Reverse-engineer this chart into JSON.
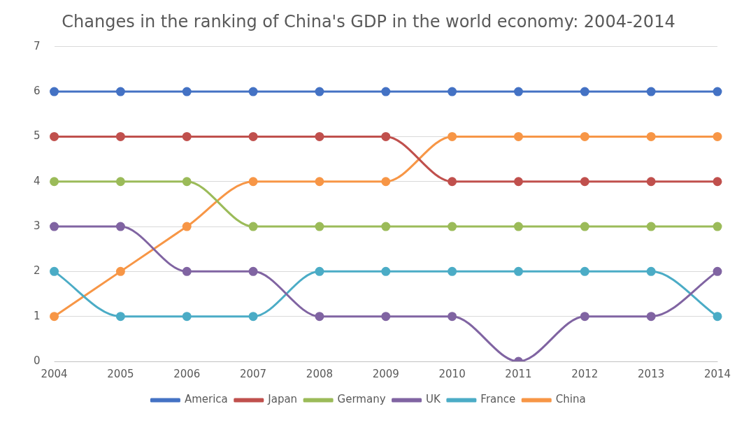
{
  "chart_data": {
    "type": "line",
    "title": "Changes in the ranking of China's GDP in the world economy: 2004-2014",
    "categories": [
      "2004",
      "2005",
      "2006",
      "2007",
      "2008",
      "2009",
      "2010",
      "2011",
      "2012",
      "2013",
      "2014"
    ],
    "series": [
      {
        "name": "America",
        "color": "#4472c4",
        "values": [
          6,
          6,
          6,
          6,
          6,
          6,
          6,
          6,
          6,
          6,
          6
        ]
      },
      {
        "name": "Japan",
        "color": "#c0504d",
        "values": [
          5,
          5,
          5,
          5,
          5,
          5,
          4,
          4,
          4,
          4,
          4
        ]
      },
      {
        "name": "Germany",
        "color": "#9bbb59",
        "values": [
          4,
          4,
          4,
          3,
          3,
          3,
          3,
          3,
          3,
          3,
          3
        ]
      },
      {
        "name": "UK",
        "color": "#8064a2",
        "values": [
          3,
          3,
          2,
          2,
          1,
          1,
          1,
          0,
          1,
          1,
          2
        ]
      },
      {
        "name": "France",
        "color": "#4bacc6",
        "values": [
          2,
          1,
          1,
          1,
          2,
          2,
          2,
          2,
          2,
          2,
          1
        ]
      },
      {
        "name": "China",
        "color": "#f79646",
        "values": [
          1,
          2,
          3,
          4,
          4,
          4,
          5,
          5,
          5,
          5,
          5
        ]
      }
    ],
    "ylim": [
      0,
      7
    ],
    "yticks": [
      0,
      1,
      2,
      3,
      4,
      5,
      6,
      7
    ],
    "grid": "y",
    "legend": "bottom",
    "marker": "circle",
    "line_style": "solid"
  }
}
